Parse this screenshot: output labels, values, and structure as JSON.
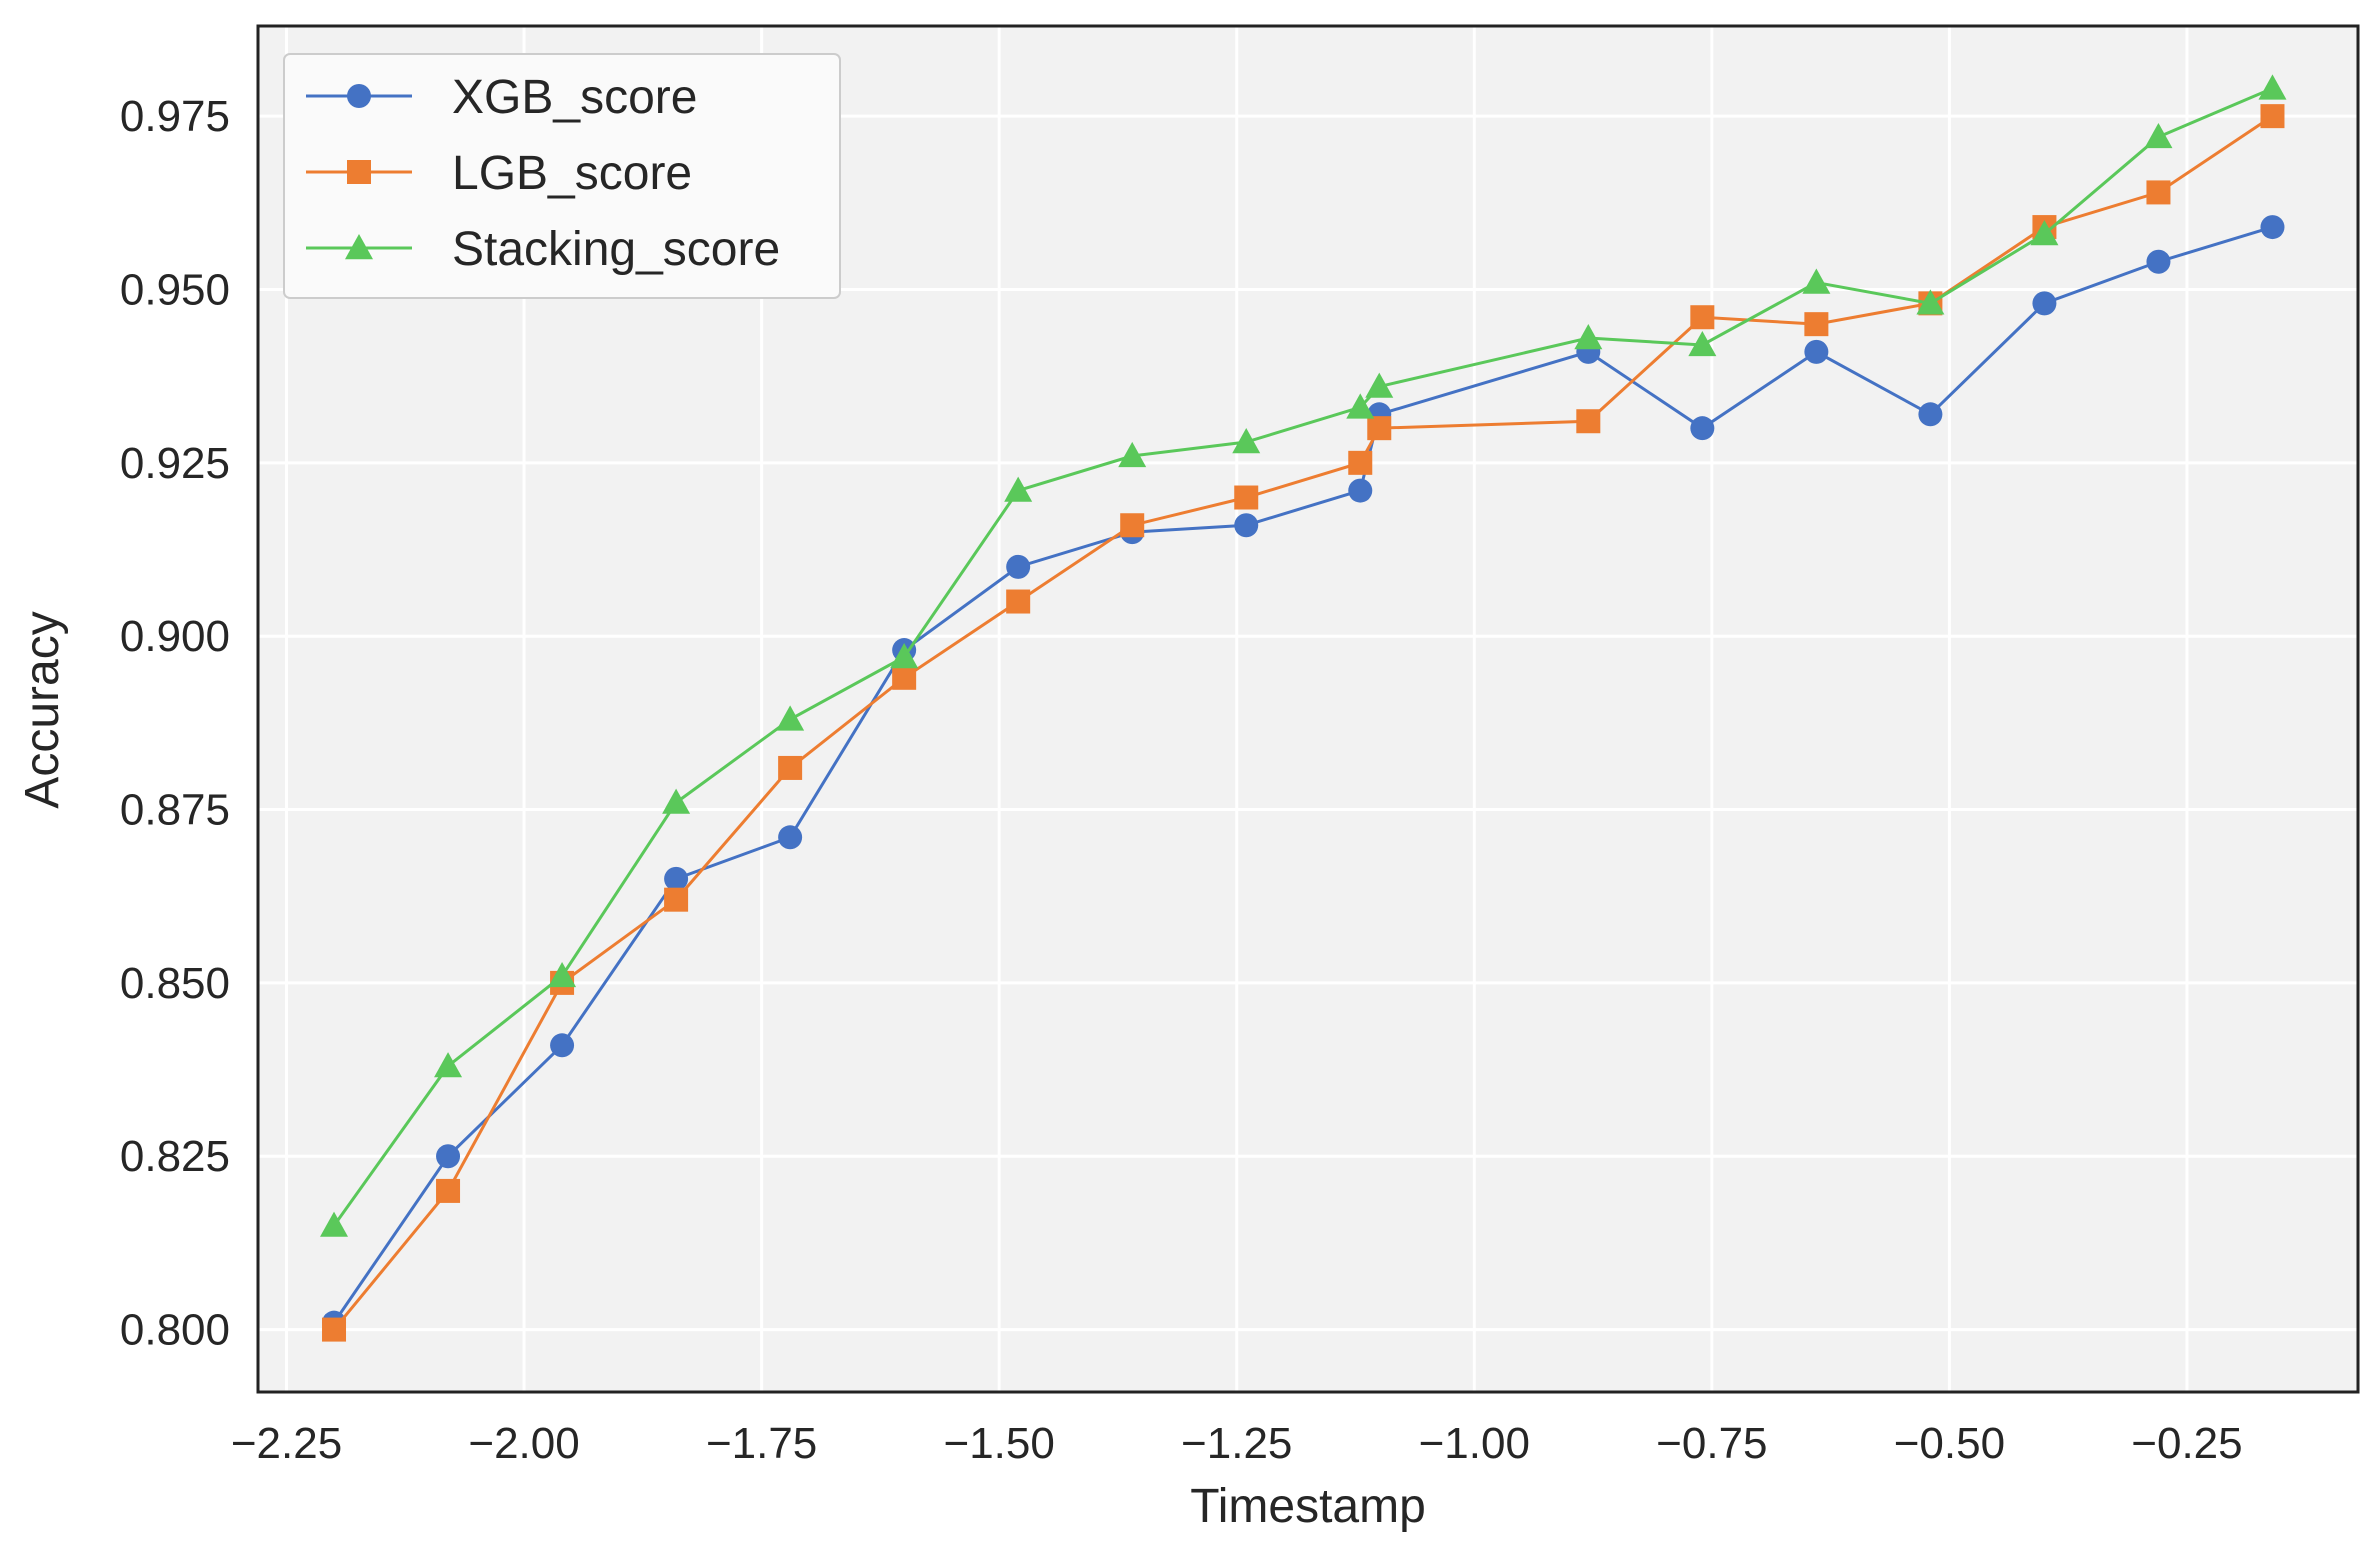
{
  "chart_data": {
    "type": "line",
    "title": "",
    "xlabel": "Timestamp",
    "ylabel": "Accuracy",
    "xlim": [
      -2.28,
      -0.07
    ],
    "ylim": [
      0.791,
      0.988
    ],
    "grid": true,
    "legend_position": "top-left",
    "x_ticks": [
      -2.25,
      -2.0,
      -1.75,
      -1.5,
      -1.25,
      -1.0,
      -0.75,
      -0.5,
      -0.25
    ],
    "x_tick_labels": [
      "−2.25",
      "−2.00",
      "−1.75",
      "−1.50",
      "−1.25",
      "−1.00",
      "−0.75",
      "−0.50",
      "−0.25"
    ],
    "y_ticks": [
      0.8,
      0.825,
      0.85,
      0.875,
      0.9,
      0.925,
      0.95,
      0.975
    ],
    "y_tick_labels": [
      "0.800",
      "0.825",
      "0.850",
      "0.875",
      "0.900",
      "0.925",
      "0.950",
      "0.975"
    ],
    "series": [
      {
        "name": "XGB_score",
        "color": "#4472c4",
        "marker": "circle",
        "x": [
          -2.2,
          -2.08,
          -1.96,
          -1.84,
          -1.72,
          -1.6,
          -1.48,
          -1.36,
          -1.24,
          -1.12,
          -1.1,
          -0.88,
          -0.76,
          -0.64,
          -0.52,
          -0.4,
          -0.28,
          -0.16
        ],
        "values": [
          0.801,
          0.825,
          0.841,
          0.865,
          0.871,
          0.898,
          0.91,
          0.915,
          0.916,
          0.921,
          0.932,
          0.941,
          0.93,
          0.941,
          0.932,
          0.948,
          0.954,
          0.959
        ]
      },
      {
        "name": "LGB_score",
        "color": "#ed7d31",
        "marker": "square",
        "x": [
          -2.2,
          -2.08,
          -1.96,
          -1.84,
          -1.72,
          -1.6,
          -1.48,
          -1.36,
          -1.24,
          -1.12,
          -1.1,
          -0.88,
          -0.76,
          -0.64,
          -0.52,
          -0.4,
          -0.28,
          -0.16
        ],
        "values": [
          0.8,
          0.82,
          0.85,
          0.862,
          0.881,
          0.894,
          0.905,
          0.916,
          0.92,
          0.925,
          0.93,
          0.931,
          0.946,
          0.945,
          0.948,
          0.959,
          0.964,
          0.975
        ]
      },
      {
        "name": "Stacking_score",
        "color": "#5ac85a",
        "marker": "triangle",
        "x": [
          -2.2,
          -2.08,
          -1.96,
          -1.84,
          -1.72,
          -1.6,
          -1.48,
          -1.36,
          -1.24,
          -1.12,
          -1.1,
          -0.88,
          -0.76,
          -0.64,
          -0.52,
          -0.4,
          -0.28,
          -0.16
        ],
        "values": [
          0.815,
          0.838,
          0.851,
          0.876,
          0.888,
          0.897,
          0.921,
          0.926,
          0.928,
          0.933,
          0.936,
          0.943,
          0.942,
          0.951,
          0.948,
          0.958,
          0.972,
          0.979
        ]
      }
    ]
  }
}
